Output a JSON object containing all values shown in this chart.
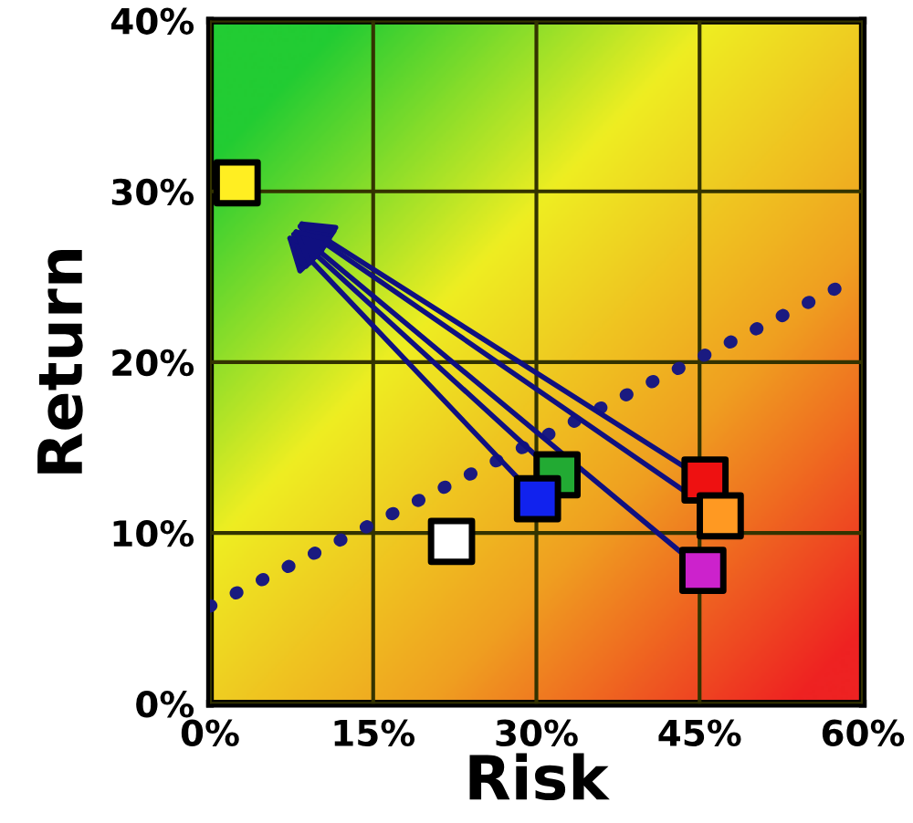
{
  "chart_data": {
    "type": "scatter",
    "xlabel": "Risk",
    "ylabel": "Return",
    "xlim": [
      0,
      60
    ],
    "ylim": [
      0,
      40
    ],
    "xticks": [
      {
        "value": 0,
        "label": "0%"
      },
      {
        "value": 15,
        "label": "15%"
      },
      {
        "value": 30,
        "label": "30%"
      },
      {
        "value": 45,
        "label": "45%"
      },
      {
        "value": 60,
        "label": "60%"
      }
    ],
    "yticks": [
      {
        "value": 0,
        "label": "0%"
      },
      {
        "value": 10,
        "label": "10%"
      },
      {
        "value": 20,
        "label": "20%"
      },
      {
        "value": 30,
        "label": "30%"
      },
      {
        "value": 40,
        "label": "40%"
      }
    ],
    "grid": true,
    "series": [
      {
        "marker": "square",
        "x": [
          2.5,
          22.2,
          31.9,
          30.1,
          45.5,
          46.9,
          45.3
        ],
        "values": [
          30.5,
          9.5,
          13.4,
          12.0,
          13.1,
          11.0,
          7.8
        ],
        "colors": [
          "#ffee22",
          "#ffffff",
          "#22aa33",
          "#1122ee",
          "#ee1111",
          "#ff9922",
          "#cc22cc"
        ]
      },
      {
        "type": "line",
        "x": [
          0,
          57.5
        ],
        "values": [
          5.7,
          24.3
        ],
        "color": "#1a1a80",
        "line_style": "dotted",
        "marker": "none"
      }
    ]
  }
}
